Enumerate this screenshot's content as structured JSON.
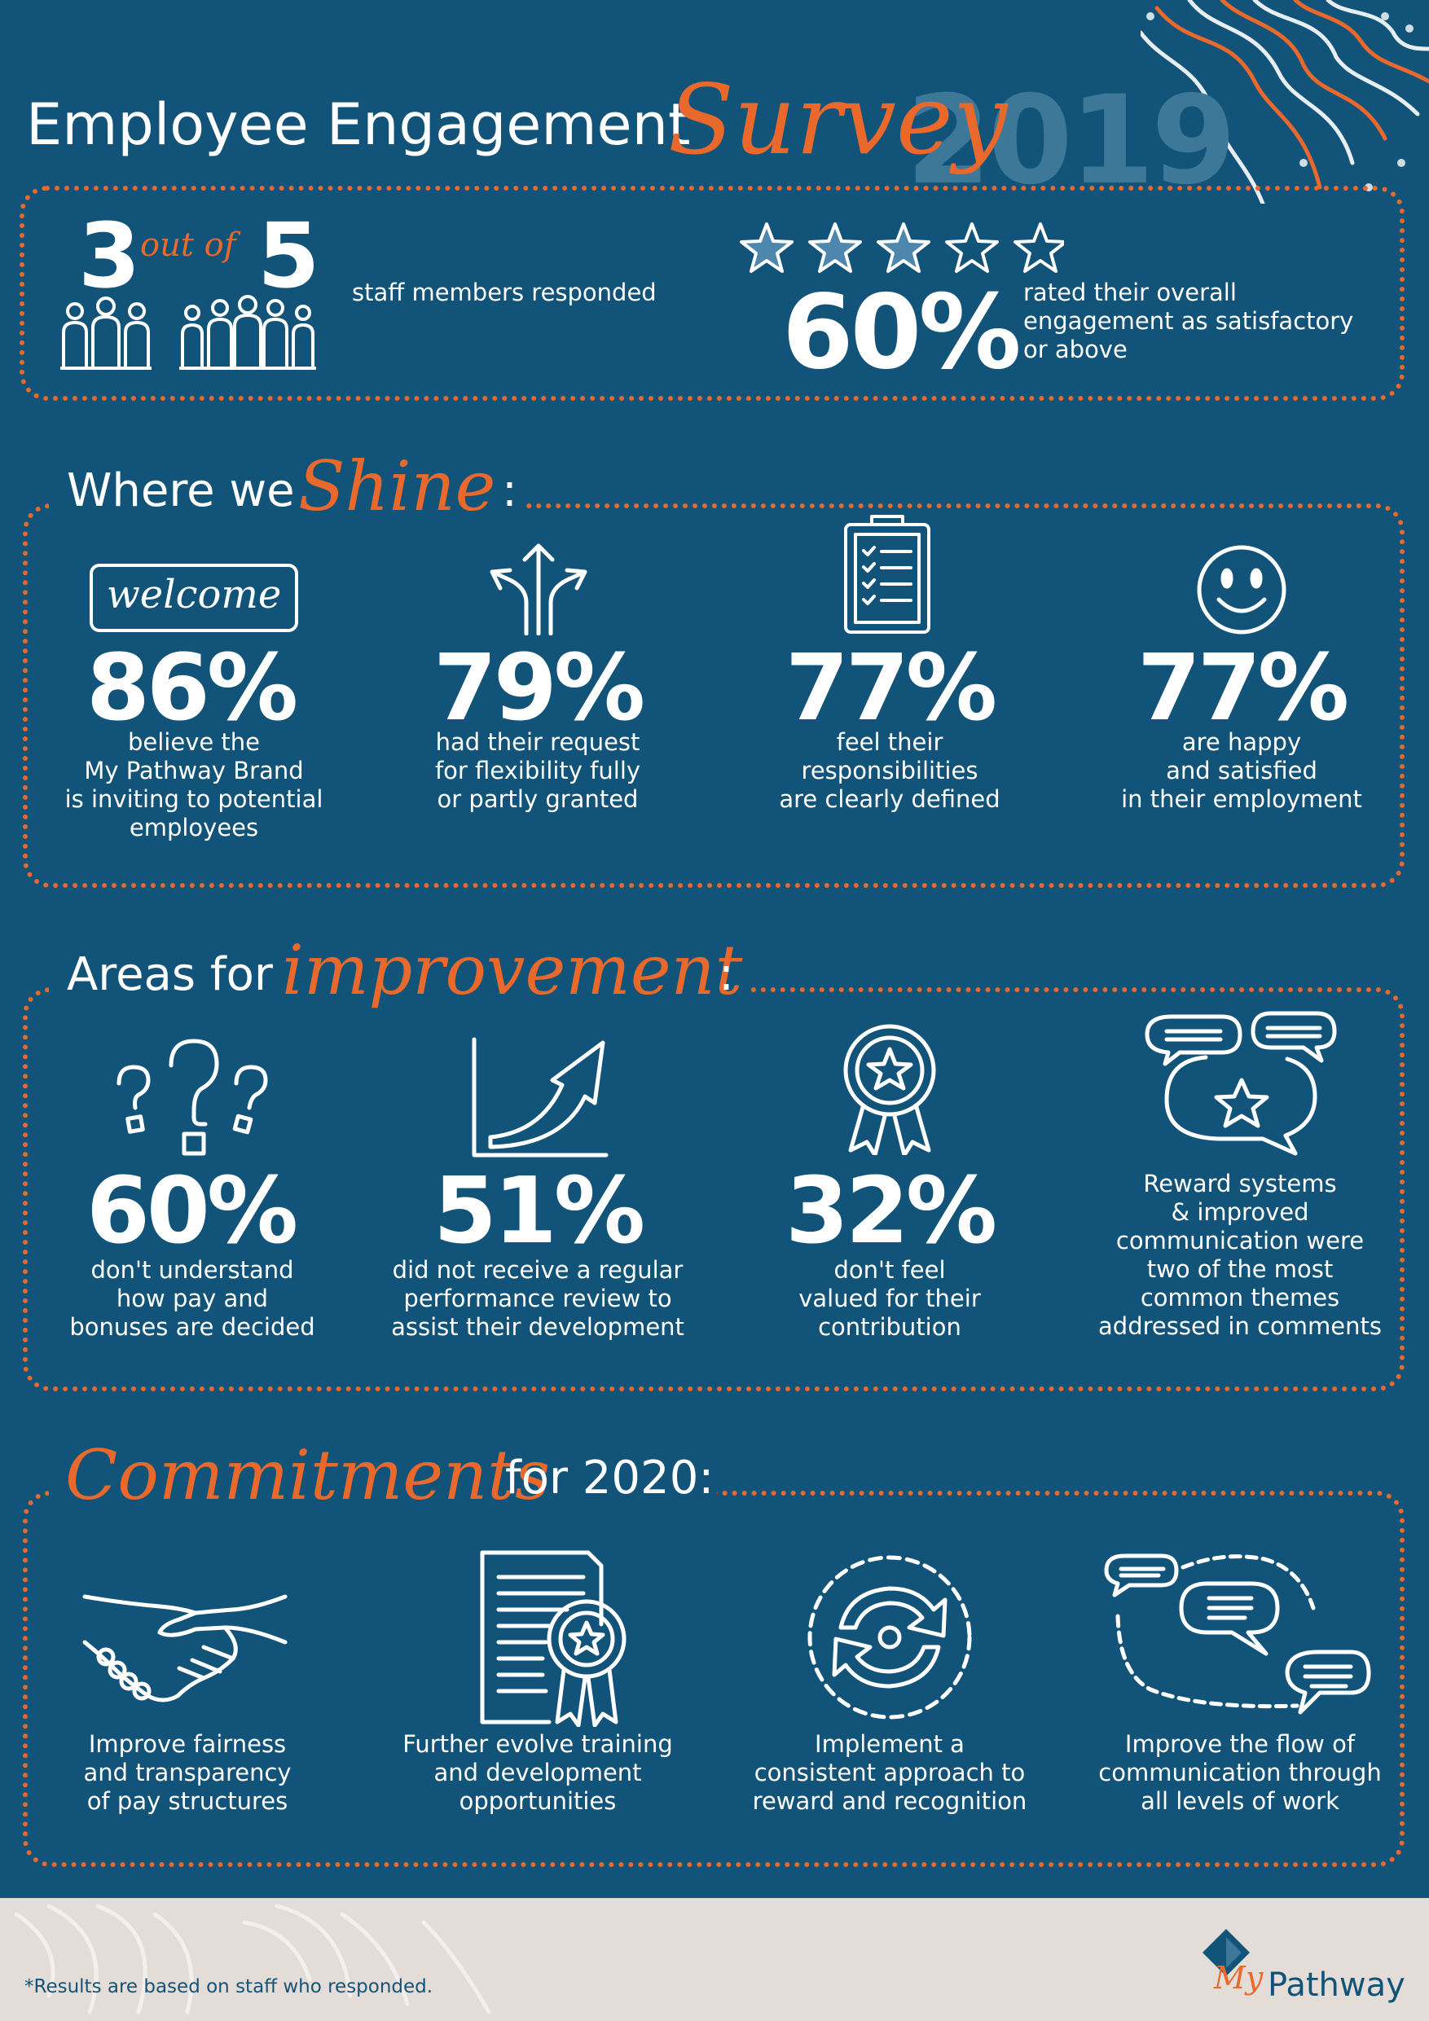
{
  "header": {
    "title_main": "Employee Engagement",
    "title_script": "Survey",
    "year": "2019"
  },
  "summary": {
    "responded_num": "3",
    "responded_of": "out of",
    "responded_total": "5",
    "responded_text": "staff members responded",
    "stars_total": 5,
    "stars_filled": 3,
    "engagement_pct": "60%",
    "engagement_text": "rated their overall engagement as satisfactory or above"
  },
  "shine": {
    "title": "Where we",
    "title_script": "Shine",
    "colon": ":",
    "welcome_sign": "welcome",
    "items": [
      {
        "pct": "86%",
        "text": "believe the\nMy Pathway Brand\nis inviting to potential\nemployees",
        "icon": "welcome-sign-icon"
      },
      {
        "pct": "79%",
        "text": "had their request\nfor flexibility fully\nor partly granted",
        "icon": "split-arrows-icon"
      },
      {
        "pct": "77%",
        "text": "feel their\nresponsibilities\nare clearly defined",
        "icon": "clipboard-checklist-icon"
      },
      {
        "pct": "77%",
        "text": "are happy\nand satisfied\nin their employment",
        "icon": "smiley-face-icon"
      }
    ]
  },
  "improvement": {
    "title": "Areas for",
    "title_script": "improvement",
    "colon": ":",
    "items": [
      {
        "pct": "60%",
        "text": "don't understand\nhow pay and\nbonuses are decided",
        "icon": "question-marks-icon"
      },
      {
        "pct": "51%",
        "text": "did not receive a regular\nperformance review to\nassist their development",
        "icon": "growth-chart-icon"
      },
      {
        "pct": "32%",
        "text": "don't feel\nvalued for their\ncontribution",
        "icon": "award-ribbon-icon"
      },
      {
        "pct": "",
        "text": "Reward systems\n& improved\ncommunication were\ntwo of the most\ncommon themes\naddressed in comments",
        "icon": "speech-bubbles-star-icon"
      }
    ]
  },
  "commitments": {
    "title_script": "Commitments",
    "title": "for 2020:",
    "items": [
      {
        "text": "Improve fairness\nand transparency\nof pay structures",
        "icon": "handshake-icon"
      },
      {
        "text": "Further evolve training\nand development\nopportunities",
        "icon": "certificate-icon"
      },
      {
        "text": "Implement a\nconsistent approach to\nreward and recognition",
        "icon": "cycle-arrows-icon"
      },
      {
        "text": "Improve the flow of\ncommunication through\nall levels of work",
        "icon": "chat-network-icon"
      }
    ]
  },
  "footer": {
    "note": "*Results are based on staff who responded.",
    "logo_text": "Pathway",
    "logo_script": "My"
  },
  "colors": {
    "background": "#125479",
    "accent": "#e8692b",
    "text": "#ffffff",
    "footer_bg": "#e4dcd7",
    "footer_text": "#125479"
  }
}
